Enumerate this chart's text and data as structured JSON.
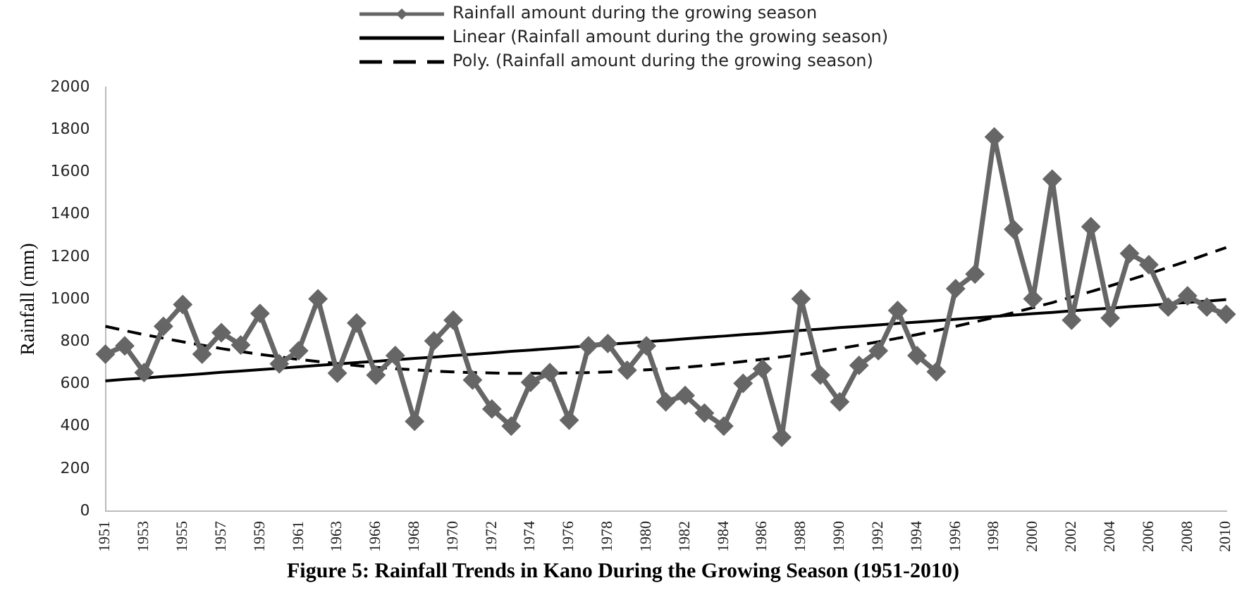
{
  "chart_data": {
    "type": "line",
    "title": "Figure 5: Rainfall Trends in Kano During the Growing Season (1951-2010)",
    "ylabel": "Rainfall (mm)",
    "categories": [
      "1951",
      null,
      "1953",
      null,
      "1955",
      null,
      "1957",
      null,
      "1959",
      null,
      "1961",
      null,
      "1963",
      null,
      "1966",
      null,
      "1968",
      null,
      "1970",
      null,
      "1972",
      null,
      "1974",
      null,
      "1976",
      null,
      "1978",
      null,
      "1980",
      null,
      "1982",
      null,
      "1984",
      null,
      "1986",
      null,
      "1988",
      null,
      "1990",
      null,
      "1992",
      null,
      "1994",
      null,
      "1996",
      null,
      "1998",
      null,
      "2000",
      null,
      "2002",
      null,
      "2004",
      null,
      "2006",
      null,
      "2008",
      null,
      "2010"
    ],
    "ylim": [
      0,
      2000
    ],
    "yticks": [
      0,
      200,
      400,
      600,
      800,
      1000,
      1200,
      1400,
      1600,
      1800,
      2000
    ],
    "grid": false,
    "legend": "top",
    "series": [
      {
        "name": "Rainfall amount during the growing season",
        "color": "#666666",
        "marker": "diamond",
        "line_style": "solid",
        "values": [
          741,
          780,
          654,
          872,
          975,
          741,
          842,
          784,
          933,
          695,
          757,
          1002,
          651,
          888,
          642,
          734,
          424,
          803,
          901,
          619,
          482,
          401,
          608,
          654,
          429,
          780,
          791,
          665,
          780,
          516,
          546,
          463,
          401,
          603,
          672,
          349,
          1002,
          642,
          516,
          688,
          757,
          947,
          734,
          658,
          1050,
          1119,
          1766,
          1330,
          1002,
          1567,
          901,
          1342,
          911,
          1216,
          1163,
          963,
          1016,
          963,
          929
        ]
      },
      {
        "name": "Linear (Rainfall amount during the growing season)",
        "color": "#000000",
        "marker": "none",
        "line_style": "solid",
        "values": [
          615,
          622,
          628,
          635,
          641,
          648,
          655,
          661,
          668,
          674,
          681,
          688,
          694,
          701,
          707,
          714,
          721,
          727,
          734,
          740,
          747,
          754,
          760,
          767,
          773,
          780,
          787,
          793,
          800,
          806,
          813,
          820,
          826,
          833,
          839,
          846,
          853,
          859,
          866,
          872,
          879,
          886,
          892,
          899,
          905,
          912,
          919,
          925,
          932,
          938,
          945,
          952,
          958,
          965,
          971,
          978,
          985,
          991,
          998
        ]
      },
      {
        "name": "Poly. (Rainfall amount during the growing season)",
        "color": "#000000",
        "marker": "none",
        "line_style": "dashed",
        "values": [
          872,
          852,
          833,
          816,
          799,
          783,
          767,
          753,
          740,
          728,
          716,
          706,
          696,
          687,
          679,
          672,
          667,
          661,
          657,
          654,
          652,
          650,
          650,
          650,
          652,
          654,
          657,
          661,
          667,
          672,
          679,
          687,
          696,
          706,
          716,
          728,
          740,
          753,
          767,
          783,
          799,
          816,
          833,
          852,
          872,
          893,
          914,
          937,
          960,
          984,
          1010,
          1036,
          1063,
          1091,
          1120,
          1150,
          1180,
          1212,
          1244
        ]
      }
    ]
  }
}
